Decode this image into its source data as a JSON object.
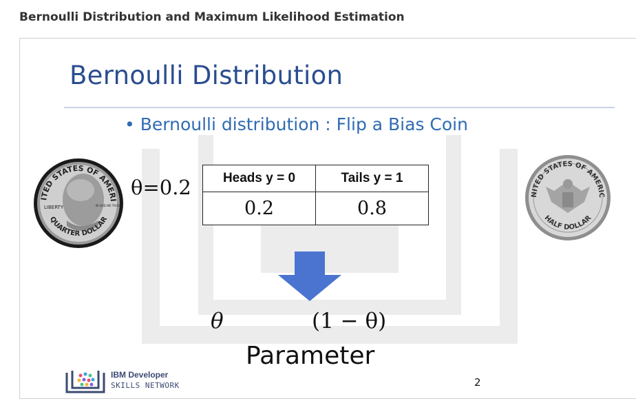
{
  "page": {
    "title": "Bernoulli Distribution and Maximum Likelihood Estimation"
  },
  "slide": {
    "heading": "Bernoulli Distribution",
    "bullet": "Bernoulli distribution : Flip a Bias Coin",
    "theta_value": "θ=0.2",
    "table": {
      "headers": [
        "Heads y = 0",
        "Tails y = 1"
      ],
      "values": [
        "0.2",
        "0.8"
      ]
    },
    "theta_label": "θ",
    "one_minus_theta_label": "(1 − θ)",
    "parameter_label": "Parameter",
    "slide_number": "2",
    "logo": {
      "line1": "IBM Developer",
      "line2": "SKILLS NETWORK"
    },
    "coins": {
      "left": {
        "name": "quarter-dollar-coin",
        "top_text": "UNITED STATES OF AMERICA",
        "left_text": "LIBERTY",
        "bottom_text": "QUARTER DOLLAR",
        "motto": "IN GOD WE TRUST"
      },
      "right": {
        "name": "half-dollar-coin",
        "top_text": "UNITED STATES OF AMERICA",
        "bottom_text": "HALF DOLLAR"
      }
    },
    "colors": {
      "heading": "#2a4d8f",
      "bullet": "#2f6bb3",
      "arrow": "#4a74d0"
    }
  }
}
